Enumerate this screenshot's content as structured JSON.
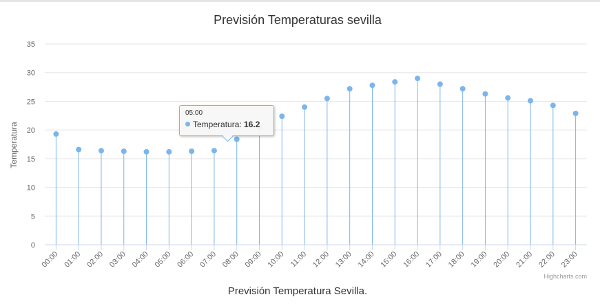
{
  "chart_data": {
    "type": "bar",
    "style": "stem-with-markers",
    "title": "Previsión Temperaturas sevilla",
    "xlabel": "Previsión Temperatura Sevilla.",
    "ylabel": "Temperatura",
    "ylim": [
      0,
      35
    ],
    "yticks": [
      0,
      5,
      10,
      15,
      20,
      25,
      30,
      35
    ],
    "grid": true,
    "categories": [
      "00:00",
      "01:00",
      "02:00",
      "03:00",
      "04:00",
      "05:00",
      "06:00",
      "07:00",
      "08:00",
      "09:00",
      "10:00",
      "11:00",
      "12:00",
      "13:00",
      "14:00",
      "15:00",
      "16:00",
      "17:00",
      "18:00",
      "19:00",
      "20:00",
      "21:00",
      "22:00",
      "23:00"
    ],
    "series": [
      {
        "name": "Temperatura",
        "values": [
          19.3,
          16.6,
          16.4,
          16.3,
          16.2,
          16.2,
          16.3,
          16.4,
          18.4,
          20.5,
          22.4,
          24.0,
          25.5,
          27.2,
          27.8,
          28.4,
          29.0,
          28.0,
          27.2,
          26.3,
          25.6,
          25.1,
          24.3,
          22.9
        ]
      }
    ],
    "colors": {
      "series": "#7cb5ec",
      "grid": "#e6e6e6",
      "axis": "#ccd6eb",
      "text": "#333333",
      "tick": "#666666"
    },
    "credits": "Highcharts.com"
  },
  "tooltip": {
    "x_label": "05:00",
    "series_name": "Temperatura",
    "separator": ": ",
    "value": "16.2"
  }
}
